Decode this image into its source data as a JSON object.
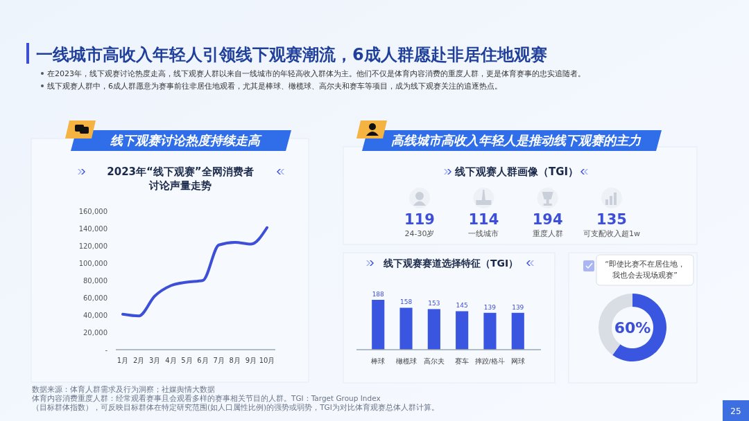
{
  "chart_data": [
    {
      "type": "other",
      "title": "一线城市高收入年轻人引领线下观赛潮流，6成人群愿赴非居住地观赛",
      "annotations": [
        "在2023年，线下观赛讨论热度走高，线下观赛人群以来自一线城市的年轻高收入群体为主。他们不仅是体育内容消费的重度人群，更是体育赛事的忠实追随者。",
        "线下观赛人群中，6成人群愿意为赛事前往非居住地观看，尤其是棒球、橄榄球、高尔夫和赛车等项目，成为线下观赛关注的追逐热点。",
        "数据来源：体育人群需求及行为洞察；社媒舆情大数据",
        "体育内容消费重度人群：经常观看赛事且会观看多样的赛事相关节目的人群。TGI：Target Group Index（目标群体指数），可反映目标群体在特定研究范围(如人口属性比例)的强势或弱势，TGI为对比体育观赛总体人群计算。",
        "25"
      ]
    },
    {
      "type": "line",
      "subtitle": "线下观赛讨论热度持续走高",
      "title": "2023年“线下观赛”全网消费者讨论声量走势",
      "categories": [
        "1月",
        "2月",
        "3月",
        "4月",
        "5月",
        "6月",
        "7月",
        "8月",
        "9月",
        "10月"
      ],
      "series": [
        {
          "color": "#3d4fd6",
          "values": [
            41000,
            39000,
            62000,
            74000,
            78000,
            80000,
            121000,
            124000,
            122000,
            141000
          ]
        }
      ],
      "ylim": [
        0,
        160000
      ],
      "yticks": [
        {
          "value": 0,
          "label": "-"
        },
        {
          "value": 20000,
          "label": "20,000"
        },
        {
          "value": 40000,
          "label": "40,000"
        },
        {
          "value": 60000,
          "label": "60,000"
        },
        {
          "value": 80000,
          "label": "80,000"
        },
        {
          "value": 100000,
          "label": "100,000"
        },
        {
          "value": 120000,
          "label": "120,000"
        },
        {
          "value": 140000,
          "label": "140,000"
        },
        {
          "value": 160000,
          "label": "160,000"
        }
      ]
    },
    {
      "type": "other",
      "subtitle": "高线城市高收入年轻人是推动线下观赛的主力",
      "title": "线下观赛人群画像（TGI）",
      "categories": [
        "24-30岁",
        "一线城市",
        "重度人群",
        "可支配收入超1w"
      ],
      "values": [
        119,
        114,
        194,
        135
      ],
      "data_labels": true
    },
    {
      "type": "bar",
      "title": "线下观赛赛道选择特征（TGI）",
      "categories": [
        "棒球",
        "橄榄球",
        "高尔夫",
        "赛车",
        "摔跤/格斗",
        "网球"
      ],
      "values": [
        188,
        158,
        153,
        145,
        139,
        139
      ],
      "color": "#3a55e0",
      "data_labels": true
    },
    {
      "type": "donut",
      "title": "“即使比赛不在居住地，我也会去现场观赛”",
      "categories": [
        null,
        null
      ],
      "values": [
        60,
        40
      ],
      "colors": [
        "#3a55e0",
        "#d9dde4"
      ],
      "value_labels": [
        "60%",
        null
      ]
    }
  ]
}
